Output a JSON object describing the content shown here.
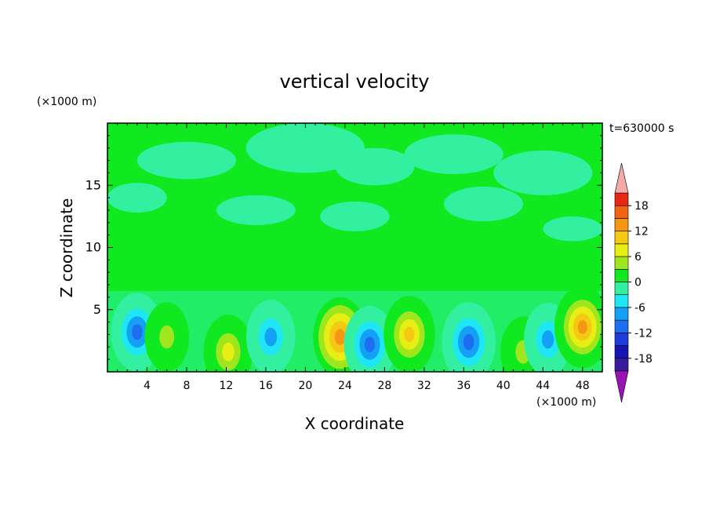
{
  "chart_data": {
    "type": "heatmap",
    "title": "vertical velocity",
    "xlabel": "X coordinate",
    "ylabel": "Z coordinate",
    "x_unit": "(×1000 m)",
    "y_unit": "(×1000 m)",
    "time_label": "t=630000 s",
    "xlim": [
      0,
      50
    ],
    "ylim": [
      0,
      20
    ],
    "x_ticks": [
      4,
      8,
      12,
      16,
      20,
      24,
      28,
      32,
      36,
      40,
      44,
      48
    ],
    "y_ticks": [
      5,
      10,
      15
    ],
    "colorbar": {
      "ticks": [
        18,
        12,
        6,
        0,
        -6,
        -12,
        -18
      ],
      "levels": [
        -21,
        -18,
        -15,
        -12,
        -9,
        -6,
        -3,
        0,
        3,
        6,
        9,
        12,
        15,
        18,
        21
      ],
      "colors": [
        "#3a1a9c",
        "#1414b4",
        "#1e3cdc",
        "#1e6ef0",
        "#14a0f5",
        "#1ee6f5",
        "#32f0a0",
        "#10e820",
        "#a0e61e",
        "#e6ee14",
        "#f5c814",
        "#f59614",
        "#f06414",
        "#e62814"
      ],
      "under_color": "#9a14b4",
      "over_color": "#f5aaaa"
    },
    "features": [
      {
        "x": 3.0,
        "z": 3.2,
        "w": -11
      },
      {
        "x": 6.0,
        "z": 2.8,
        "w": 4
      },
      {
        "x": 12.2,
        "z": 1.6,
        "w": 8
      },
      {
        "x": 16.5,
        "z": 2.8,
        "w": -8
      },
      {
        "x": 23.5,
        "z": 2.8,
        "w": 12
      },
      {
        "x": 26.5,
        "z": 2.2,
        "w": -10
      },
      {
        "x": 30.5,
        "z": 3.0,
        "w": 10
      },
      {
        "x": 36.5,
        "z": 2.4,
        "w": -12
      },
      {
        "x": 42.0,
        "z": 1.6,
        "w": 5
      },
      {
        "x": 44.5,
        "z": 2.6,
        "w": -7
      },
      {
        "x": 48.0,
        "z": 3.6,
        "w": 14
      }
    ]
  }
}
